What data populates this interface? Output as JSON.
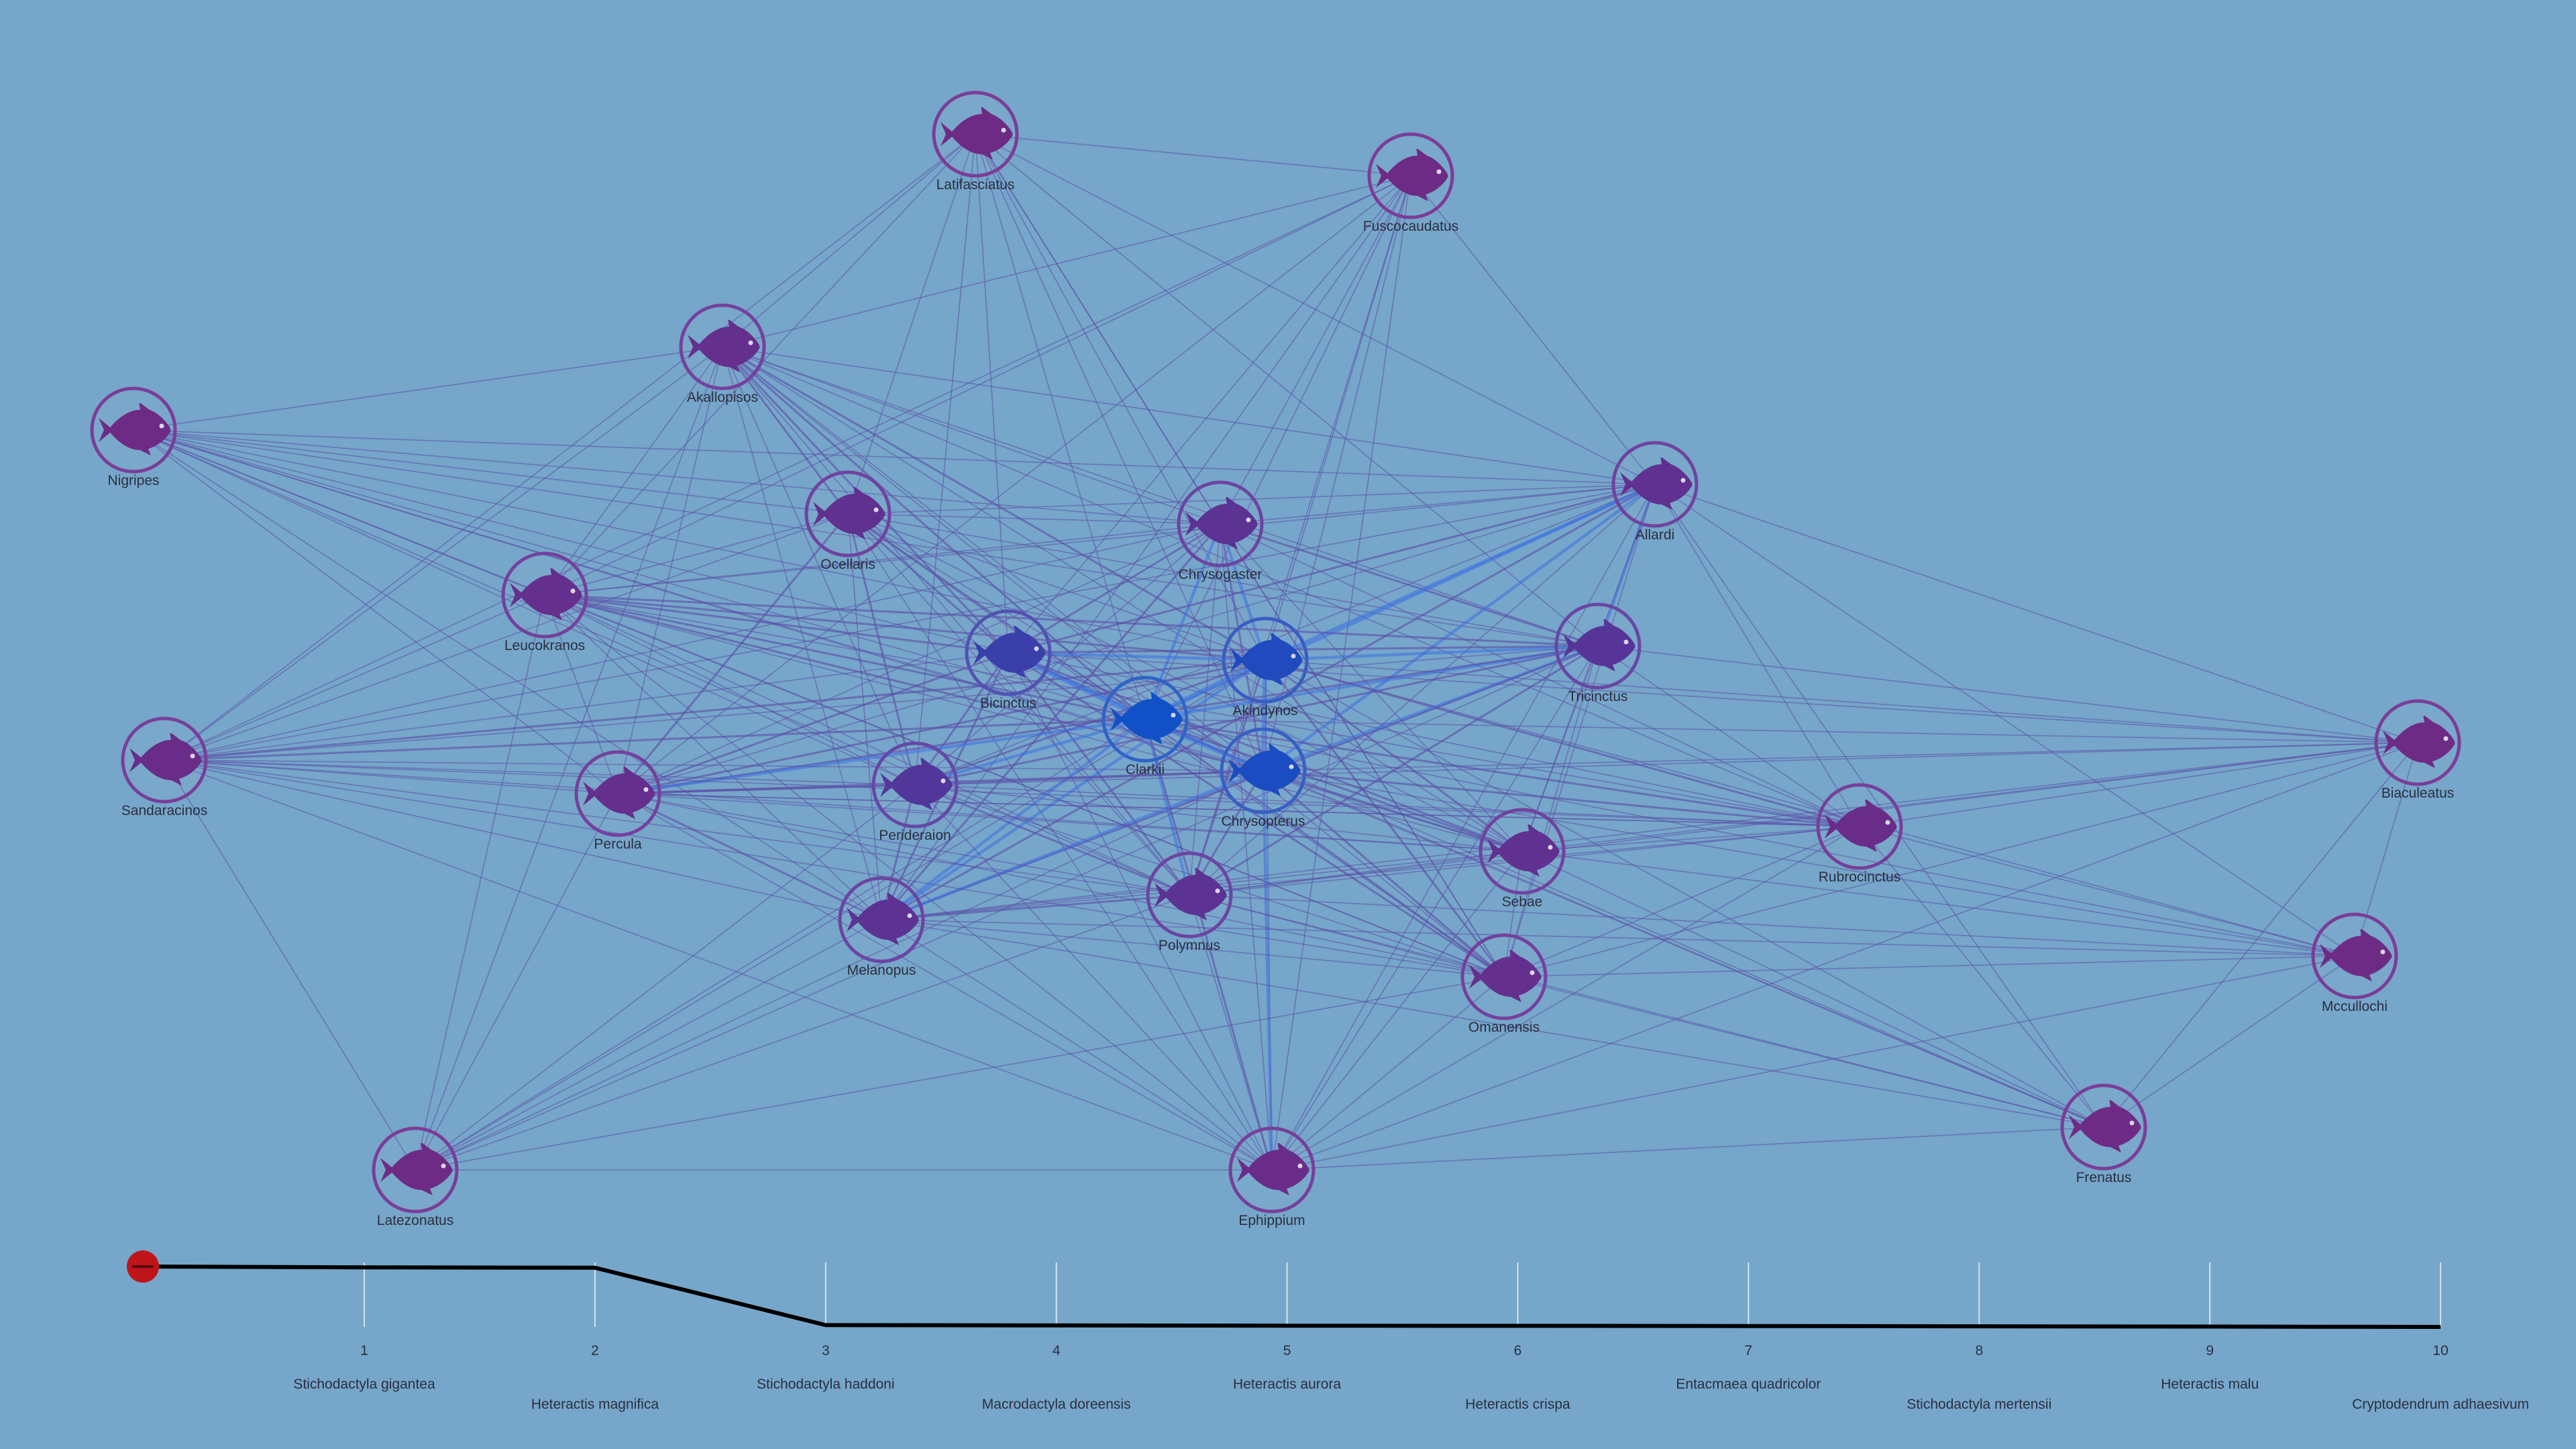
{
  "colors": {
    "background": "#76a6c9",
    "node_outer": "#7a3d98",
    "node_hub": "#2f63c8",
    "fish_default": "#6e2b86",
    "fish_hub": "#1250c8",
    "edge": "#5a4da6",
    "edge_strong": "#3d6fe0",
    "timeline_line": "#000000",
    "slider_handle": "#c0141b"
  },
  "icon": "fish-icon",
  "nodes": [
    {
      "id": "latifasciatus",
      "label": "Latifasciatus",
      "hub": 0
    },
    {
      "id": "fuscocaudatus",
      "label": "Fuscocaudatus",
      "hub": 0
    },
    {
      "id": "akallopisos",
      "label": "Akallopisos",
      "hub": 0.1
    },
    {
      "id": "nigripes",
      "label": "Nigripes",
      "hub": 0
    },
    {
      "id": "ocellaris",
      "label": "Ocellaris",
      "hub": 0.15
    },
    {
      "id": "chrysogaster",
      "label": "Chrysogaster",
      "hub": 0.2
    },
    {
      "id": "allardi",
      "label": "Allardi",
      "hub": 0.15
    },
    {
      "id": "leucokranos",
      "label": "Leucokranos",
      "hub": 0.1
    },
    {
      "id": "bicinctus",
      "label": "Bicinctus",
      "hub": 0.55
    },
    {
      "id": "akindynos",
      "label": "Akindynos",
      "hub": 0.85
    },
    {
      "id": "tricinctus",
      "label": "Tricinctus",
      "hub": 0.25
    },
    {
      "id": "clarkii",
      "label": "Clarkii",
      "hub": 1
    },
    {
      "id": "chrysopterus",
      "label": "Chrysopterus",
      "hub": 0.9
    },
    {
      "id": "sandaracinos",
      "label": "Sandaracinos",
      "hub": 0.05
    },
    {
      "id": "percula",
      "label": "Percula",
      "hub": 0.1
    },
    {
      "id": "perideraion",
      "label": "Perideraion",
      "hub": 0.3
    },
    {
      "id": "biaculeatus",
      "label": "Biaculeatus",
      "hub": 0
    },
    {
      "id": "rubrocinctus",
      "label": "Rubrocinctus",
      "hub": 0.05
    },
    {
      "id": "sebae",
      "label": "Sebae",
      "hub": 0.15
    },
    {
      "id": "polymnus",
      "label": "Polymnus",
      "hub": 0.2
    },
    {
      "id": "melanopus",
      "label": "Melanopus",
      "hub": 0.2
    },
    {
      "id": "omanensis",
      "label": "Omanensis",
      "hub": 0.1
    },
    {
      "id": "mccullochi",
      "label": "Mccullochi",
      "hub": 0
    },
    {
      "id": "frenatus",
      "label": "Frenatus",
      "hub": 0
    },
    {
      "id": "latezonatus",
      "label": "Latezonatus",
      "hub": 0
    },
    {
      "id": "ephippium",
      "label": "Ephippium",
      "hub": 0.05
    }
  ],
  "edges": [
    [
      "latifasciatus",
      "fuscocaudatus",
      1
    ],
    [
      "latifasciatus",
      "akallopisos",
      1
    ],
    [
      "latifasciatus",
      "ocellaris",
      1
    ],
    [
      "latifasciatus",
      "chrysogaster",
      1
    ],
    [
      "latifasciatus",
      "bicinctus",
      1
    ],
    [
      "latifasciatus",
      "clarkii",
      1
    ],
    [
      "latifasciatus",
      "akindynos",
      1
    ],
    [
      "latifasciatus",
      "chrysopterus",
      1
    ],
    [
      "latifasciatus",
      "leucokranos",
      1
    ],
    [
      "latifasciatus",
      "sandaracinos",
      1
    ],
    [
      "latifasciatus",
      "allardi",
      1
    ],
    [
      "latifasciatus",
      "perideraion",
      1
    ],
    [
      "latifasciatus",
      "tricinctus",
      1
    ],
    [
      "latifasciatus",
      "omanensis",
      1
    ],
    [
      "fuscocaudatus",
      "akallopisos",
      1
    ],
    [
      "fuscocaudatus",
      "chrysogaster",
      1
    ],
    [
      "fuscocaudatus",
      "akindynos",
      1
    ],
    [
      "fuscocaudatus",
      "clarkii",
      1
    ],
    [
      "fuscocaudatus",
      "chrysopterus",
      1
    ],
    [
      "fuscocaudatus",
      "bicinctus",
      1
    ],
    [
      "fuscocaudatus",
      "allardi",
      1
    ],
    [
      "fuscocaudatus",
      "leucokranos",
      1
    ],
    [
      "fuscocaudatus",
      "percula",
      1
    ],
    [
      "fuscocaudatus",
      "melanopus",
      1
    ],
    [
      "fuscocaudatus",
      "polymnus",
      1
    ],
    [
      "fuscocaudatus",
      "ephippium",
      1
    ],
    [
      "fuscocaudatus",
      "sandaracinos",
      1
    ],
    [
      "akallopisos",
      "nigripes",
      1
    ],
    [
      "akallopisos",
      "ocellaris",
      2
    ],
    [
      "akallopisos",
      "bicinctus",
      2
    ],
    [
      "akallopisos",
      "clarkii",
      2
    ],
    [
      "akallopisos",
      "akindynos",
      2
    ],
    [
      "akallopisos",
      "chrysopterus",
      1
    ],
    [
      "akallopisos",
      "leucokranos",
      1
    ],
    [
      "akallopisos",
      "percula",
      1
    ],
    [
      "akallopisos",
      "sandaracinos",
      1
    ],
    [
      "akallopisos",
      "perideraion",
      1
    ],
    [
      "akallopisos",
      "melanopus",
      1
    ],
    [
      "akallopisos",
      "tricinctus",
      1
    ],
    [
      "akallopisos",
      "sebae",
      1
    ],
    [
      "akallopisos",
      "polymnus",
      1
    ],
    [
      "akallopisos",
      "allardi",
      1
    ],
    [
      "akallopisos",
      "omanensis",
      1
    ],
    [
      "akallopisos",
      "rubrocinctus",
      1
    ],
    [
      "akallopisos",
      "chrysogaster",
      1
    ],
    [
      "akallopisos",
      "latezonatus",
      1
    ],
    [
      "nigripes",
      "leucokranos",
      1
    ],
    [
      "nigripes",
      "ocellaris",
      1
    ],
    [
      "nigripes",
      "bicinctus",
      1
    ],
    [
      "nigripes",
      "clarkii",
      1
    ],
    [
      "nigripes",
      "akindynos",
      1
    ],
    [
      "nigripes",
      "chrysopterus",
      1
    ],
    [
      "nigripes",
      "chrysogaster",
      1
    ],
    [
      "nigripes",
      "percula",
      1
    ],
    [
      "nigripes",
      "perideraion",
      1
    ],
    [
      "nigripes",
      "melanopus",
      1
    ],
    [
      "nigripes",
      "sebae",
      1
    ],
    [
      "nigripes",
      "polymnus",
      1
    ],
    [
      "nigripes",
      "tricinctus",
      1
    ],
    [
      "nigripes",
      "allardi",
      1
    ],
    [
      "nigripes",
      "omanensis",
      1
    ],
    [
      "ocellaris",
      "leucokranos",
      1
    ],
    [
      "ocellaris",
      "bicinctus",
      2
    ],
    [
      "ocellaris",
      "clarkii",
      2
    ],
    [
      "ocellaris",
      "akindynos",
      1
    ],
    [
      "ocellaris",
      "chrysopterus",
      1
    ],
    [
      "ocellaris",
      "chrysogaster",
      1
    ],
    [
      "ocellaris",
      "percula",
      2
    ],
    [
      "ocellaris",
      "perideraion",
      2
    ],
    [
      "ocellaris",
      "melanopus",
      1
    ],
    [
      "ocellaris",
      "polymnus",
      1
    ],
    [
      "ocellaris",
      "allardi",
      1
    ],
    [
      "ocellaris",
      "sandaracinos",
      1
    ],
    [
      "ocellaris",
      "sebae",
      1
    ],
    [
      "ocellaris",
      "tricinctus",
      1
    ],
    [
      "ocellaris",
      "omanensis",
      1
    ],
    [
      "ocellaris",
      "ephippium",
      1
    ],
    [
      "chrysogaster",
      "leucokranos",
      1
    ],
    [
      "chrysogaster",
      "bicinctus",
      2
    ],
    [
      "chrysogaster",
      "clarkii",
      3
    ],
    [
      "chrysogaster",
      "akindynos",
      3
    ],
    [
      "chrysogaster",
      "chrysopterus",
      2
    ],
    [
      "chrysogaster",
      "allardi",
      1
    ],
    [
      "chrysogaster",
      "tricinctus",
      2
    ],
    [
      "chrysogaster",
      "melanopus",
      2
    ],
    [
      "chrysogaster",
      "perideraion",
      1
    ],
    [
      "chrysogaster",
      "percula",
      1
    ],
    [
      "chrysogaster",
      "polymnus",
      1
    ],
    [
      "chrysogaster",
      "sebae",
      1
    ],
    [
      "chrysogaster",
      "omanensis",
      1
    ],
    [
      "chrysogaster",
      "rubrocinctus",
      1
    ],
    [
      "chrysogaster",
      "ephippium",
      1
    ],
    [
      "chrysogaster",
      "sandaracinos",
      1
    ],
    [
      "allardi",
      "leucokranos",
      1
    ],
    [
      "allardi",
      "bicinctus",
      2
    ],
    [
      "allardi",
      "clarkii",
      3
    ],
    [
      "allardi",
      "akindynos",
      3
    ],
    [
      "allardi",
      "chrysopterus",
      3
    ],
    [
      "allardi",
      "tricinctus",
      3
    ],
    [
      "allardi",
      "sebae",
      1
    ],
    [
      "allardi",
      "rubrocinctus",
      1
    ],
    [
      "allardi",
      "biaculeatus",
      1
    ],
    [
      "allardi",
      "mccullochi",
      1
    ],
    [
      "allardi",
      "melanopus",
      2
    ],
    [
      "allardi",
      "perideraion",
      1
    ],
    [
      "allardi",
      "percula",
      1
    ],
    [
      "allardi",
      "polymnus",
      1
    ],
    [
      "allardi",
      "omanensis",
      1
    ],
    [
      "allardi",
      "ephippium",
      1
    ],
    [
      "allardi",
      "frenatus",
      1
    ],
    [
      "allardi",
      "sandaracinos",
      1
    ],
    [
      "leucokranos",
      "bicinctus",
      2
    ],
    [
      "leucokranos",
      "clarkii",
      2
    ],
    [
      "leucokranos",
      "akindynos",
      2
    ],
    [
      "leucokranos",
      "chrysopterus",
      2
    ],
    [
      "leucokranos",
      "tricinctus",
      2
    ],
    [
      "leucokranos",
      "percula",
      1
    ],
    [
      "leucokranos",
      "perideraion",
      1
    ],
    [
      "leucokranos",
      "melanopus",
      1
    ],
    [
      "leucokranos",
      "sandaracinos",
      1
    ],
    [
      "leucokranos",
      "sebae",
      1
    ],
    [
      "leucokranos",
      "rubrocinctus",
      1
    ],
    [
      "leucokranos",
      "omanensis",
      1
    ],
    [
      "leucokranos",
      "polymnus",
      1
    ],
    [
      "leucokranos",
      "latezonatus",
      1
    ],
    [
      "leucokranos",
      "ephippium",
      1
    ],
    [
      "bicinctus",
      "clarkii",
      4
    ],
    [
      "bicinctus",
      "akindynos",
      3
    ],
    [
      "bicinctus",
      "chrysopterus",
      3
    ],
    [
      "bicinctus",
      "tricinctus",
      2
    ],
    [
      "bicinctus",
      "perideraion",
      2
    ],
    [
      "bicinctus",
      "percula",
      2
    ],
    [
      "bicinctus",
      "melanopus",
      2
    ],
    [
      "bicinctus",
      "polymnus",
      2
    ],
    [
      "bicinctus",
      "sebae",
      2
    ],
    [
      "bicinctus",
      "omanensis",
      2
    ],
    [
      "bicinctus",
      "rubrocinctus",
      1
    ],
    [
      "bicinctus",
      "sandaracinos",
      1
    ],
    [
      "bicinctus",
      "ephippium",
      1
    ],
    [
      "bicinctus",
      "frenatus",
      1
    ],
    [
      "bicinctus",
      "biaculeatus",
      1
    ],
    [
      "akindynos",
      "clarkii",
      4
    ],
    [
      "akindynos",
      "chrysopterus",
      4
    ],
    [
      "akindynos",
      "tricinctus",
      3
    ],
    [
      "akindynos",
      "perideraion",
      2
    ],
    [
      "akindynos",
      "percula",
      2
    ],
    [
      "akindynos",
      "melanopus",
      3
    ],
    [
      "akindynos",
      "polymnus",
      2
    ],
    [
      "akindynos",
      "sebae",
      2
    ],
    [
      "akindynos",
      "omanensis",
      2
    ],
    [
      "akindynos",
      "rubrocinctus",
      2
    ],
    [
      "akindynos",
      "sandaracinos",
      2
    ],
    [
      "akindynos",
      "biaculeatus",
      1
    ],
    [
      "akindynos",
      "mccullochi",
      1
    ],
    [
      "akindynos",
      "frenatus",
      1
    ],
    [
      "akindynos",
      "ephippium",
      1
    ],
    [
      "akindynos",
      "latezonatus",
      1
    ],
    [
      "tricinctus",
      "clarkii",
      3
    ],
    [
      "tricinctus",
      "chrysopterus",
      3
    ],
    [
      "tricinctus",
      "perideraion",
      2
    ],
    [
      "tricinctus",
      "percula",
      2
    ],
    [
      "tricinctus",
      "melanopus",
      2
    ],
    [
      "tricinctus",
      "polymnus",
      2
    ],
    [
      "tricinctus",
      "sebae",
      1
    ],
    [
      "tricinctus",
      "omanensis",
      1
    ],
    [
      "tricinctus",
      "rubrocinctus",
      1
    ],
    [
      "tricinctus",
      "biaculeatus",
      1
    ],
    [
      "tricinctus",
      "sandaracinos",
      1
    ],
    [
      "tricinctus",
      "ephippium",
      1
    ],
    [
      "tricinctus",
      "latezonatus",
      1
    ],
    [
      "clarkii",
      "chrysopterus",
      4
    ],
    [
      "clarkii",
      "perideraion",
      3
    ],
    [
      "clarkii",
      "percula",
      3
    ],
    [
      "clarkii",
      "melanopus",
      3
    ],
    [
      "clarkii",
      "polymnus",
      3
    ],
    [
      "clarkii",
      "sebae",
      2
    ],
    [
      "clarkii",
      "omanensis",
      2
    ],
    [
      "clarkii",
      "rubrocinctus",
      2
    ],
    [
      "clarkii",
      "sandaracinos",
      2
    ],
    [
      "clarkii",
      "biaculeatus",
      1
    ],
    [
      "clarkii",
      "mccullochi",
      1
    ],
    [
      "clarkii",
      "frenatus",
      1
    ],
    [
      "clarkii",
      "ephippium",
      2
    ],
    [
      "clarkii",
      "latezonatus",
      1
    ],
    [
      "chrysopterus",
      "perideraion",
      2
    ],
    [
      "chrysopterus",
      "percula",
      2
    ],
    [
      "chrysopterus",
      "melanopus",
      3
    ],
    [
      "chrysopterus",
      "polymnus",
      2
    ],
    [
      "chrysopterus",
      "sebae",
      2
    ],
    [
      "chrysopterus",
      "omanensis",
      2
    ],
    [
      "chrysopterus",
      "rubrocinctus",
      2
    ],
    [
      "chrysopterus",
      "sandaracinos",
      1
    ],
    [
      "chrysopterus",
      "biaculeatus",
      1
    ],
    [
      "chrysopterus",
      "mccullochi",
      1
    ],
    [
      "chrysopterus",
      "frenatus",
      1
    ],
    [
      "chrysopterus",
      "ephippium",
      3
    ],
    [
      "chrysopterus",
      "latezonatus",
      1
    ],
    [
      "sandaracinos",
      "percula",
      1
    ],
    [
      "sandaracinos",
      "perideraion",
      1
    ],
    [
      "sandaracinos",
      "melanopus",
      1
    ],
    [
      "sandaracinos",
      "polymnus",
      1
    ],
    [
      "sandaracinos",
      "sebae",
      1
    ],
    [
      "sandaracinos",
      "latezonatus",
      1
    ],
    [
      "sandaracinos",
      "ephippium",
      1
    ],
    [
      "sandaracinos",
      "omanensis",
      1
    ],
    [
      "sandaracinos",
      "rubrocinctus",
      1
    ],
    [
      "percula",
      "perideraion",
      2
    ],
    [
      "percula",
      "melanopus",
      2
    ],
    [
      "percula",
      "polymnus",
      1
    ],
    [
      "percula",
      "sebae",
      1
    ],
    [
      "percula",
      "omanensis",
      1
    ],
    [
      "percula",
      "rubrocinctus",
      1
    ],
    [
      "percula",
      "latezonatus",
      1
    ],
    [
      "percula",
      "ephippium",
      1
    ],
    [
      "perideraion",
      "melanopus",
      2
    ],
    [
      "perideraion",
      "polymnus",
      2
    ],
    [
      "perideraion",
      "sebae",
      1
    ],
    [
      "perideraion",
      "omanensis",
      1
    ],
    [
      "perideraion",
      "rubrocinctus",
      1
    ],
    [
      "perideraion",
      "ephippium",
      1
    ],
    [
      "perideraion",
      "latezonatus",
      1
    ],
    [
      "biaculeatus",
      "rubrocinctus",
      1
    ],
    [
      "biaculeatus",
      "sebae",
      1
    ],
    [
      "biaculeatus",
      "polymnus",
      1
    ],
    [
      "biaculeatus",
      "omanensis",
      1
    ],
    [
      "biaculeatus",
      "melanopus",
      1
    ],
    [
      "biaculeatus",
      "mccullochi",
      1
    ],
    [
      "biaculeatus",
      "frenatus",
      1
    ],
    [
      "biaculeatus",
      "ephippium",
      1
    ],
    [
      "biaculeatus",
      "percula",
      1
    ],
    [
      "rubrocinctus",
      "sebae",
      1
    ],
    [
      "rubrocinctus",
      "polymnus",
      1
    ],
    [
      "rubrocinctus",
      "omanensis",
      1
    ],
    [
      "rubrocinctus",
      "melanopus",
      1
    ],
    [
      "rubrocinctus",
      "mccullochi",
      1
    ],
    [
      "rubrocinctus",
      "frenatus",
      1
    ],
    [
      "rubrocinctus",
      "ephippium",
      1
    ],
    [
      "rubrocinctus",
      "percula",
      1
    ],
    [
      "sebae",
      "polymnus",
      1
    ],
    [
      "sebae",
      "omanensis",
      1
    ],
    [
      "sebae",
      "melanopus",
      1
    ],
    [
      "sebae",
      "ephippium",
      1
    ],
    [
      "sebae",
      "frenatus",
      1
    ],
    [
      "sebae",
      "mccullochi",
      1
    ],
    [
      "polymnus",
      "melanopus",
      2
    ],
    [
      "polymnus",
      "omanensis",
      1
    ],
    [
      "polymnus",
      "ephippium",
      1
    ],
    [
      "polymnus",
      "latezonatus",
      1
    ],
    [
      "polymnus",
      "frenatus",
      1
    ],
    [
      "polymnus",
      "mccullochi",
      1
    ],
    [
      "melanopus",
      "omanensis",
      1
    ],
    [
      "melanopus",
      "ephippium",
      1
    ],
    [
      "melanopus",
      "latezonatus",
      1
    ],
    [
      "melanopus",
      "frenatus",
      1
    ],
    [
      "melanopus",
      "mccullochi",
      1
    ],
    [
      "omanensis",
      "ephippium",
      1
    ],
    [
      "omanensis",
      "mccullochi",
      1
    ],
    [
      "omanensis",
      "frenatus",
      1
    ],
    [
      "omanensis",
      "latezonatus",
      1
    ],
    [
      "mccullochi",
      "frenatus",
      1
    ],
    [
      "mccullochi",
      "ephippium",
      1
    ],
    [
      "frenatus",
      "ephippium",
      1
    ],
    [
      "ephippium",
      "latezonatus",
      1
    ]
  ],
  "timeline": {
    "ticks": [
      {
        "n": "1",
        "label": "Stichodactyla gigantea"
      },
      {
        "n": "2",
        "label": "Heteractis magnifica"
      },
      {
        "n": "3",
        "label": "Stichodactyla haddoni"
      },
      {
        "n": "4",
        "label": "Macrodactyla doreensis"
      },
      {
        "n": "5",
        "label": "Heteractis aurora"
      },
      {
        "n": "6",
        "label": "Heteractis crispa"
      },
      {
        "n": "7",
        "label": "Entacmaea quadricolor"
      },
      {
        "n": "8",
        "label": "Stichodactyla mertensii"
      },
      {
        "n": "9",
        "label": "Heteractis malu"
      },
      {
        "n": "10",
        "label": "Cryptodendrum adhaesivum"
      }
    ],
    "selected": 0,
    "line_values": [
      1.0,
      0.985,
      0.98,
      0.03,
      0.025,
      0.02,
      0.018,
      0.015,
      0.01,
      0.005,
      0.0
    ]
  }
}
